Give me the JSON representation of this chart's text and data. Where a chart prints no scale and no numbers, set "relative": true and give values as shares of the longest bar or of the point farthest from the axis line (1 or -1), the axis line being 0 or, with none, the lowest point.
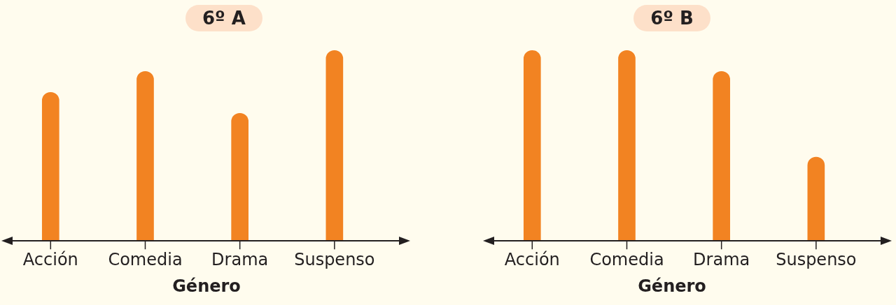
{
  "chart_data": [
    {
      "type": "bar",
      "relative": true,
      "title": "6º A",
      "xlabel": "Género",
      "categories": [
        "Acción",
        "Comedia",
        "Drama",
        "Suspenso"
      ],
      "values": [
        0.78,
        0.89,
        0.67,
        1
      ],
      "color": "#f28322",
      "tick_labels": "x",
      "grid": false
    },
    {
      "type": "bar",
      "relative": true,
      "title": "6º B",
      "xlabel": "Género",
      "categories": [
        "Acción",
        "Comedia",
        "Drama",
        "Suspenso"
      ],
      "values": [
        1,
        1,
        0.89,
        0.44
      ],
      "color": "#f28322",
      "tick_labels": "x",
      "grid": false
    }
  ]
}
